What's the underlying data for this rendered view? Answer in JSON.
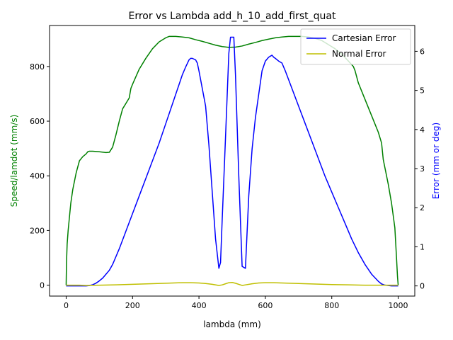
{
  "chart_data": {
    "type": "line",
    "title": "Error vs Lambda add_h_10_add_first_quat",
    "xlabel": "lambda (mm)",
    "ylabel_left": "Speed/lamdot (mm/s)",
    "ylabel_right": "Error (mm or deg)",
    "xlim": [
      -50,
      1050
    ],
    "ylim_left": [
      -40,
      950
    ],
    "ylim_right": [
      -0.26,
      6.66
    ],
    "x_ticks": [
      0,
      200,
      400,
      600,
      800,
      1000
    ],
    "y_ticks_left": [
      0,
      200,
      400,
      600,
      800
    ],
    "y_ticks_right": [
      0,
      1,
      2,
      3,
      4,
      5,
      6
    ],
    "grid": false,
    "legend_position": "upper right",
    "colors": {
      "speed": "#008000",
      "cartesian": "#0000ff",
      "normal": "#bfbf00"
    },
    "series": [
      {
        "name": "",
        "axis": "left",
        "color": "#008000",
        "x": [
          0,
          1,
          3,
          6,
          10,
          14,
          20,
          30,
          40,
          50,
          60,
          65,
          70,
          80,
          100,
          120,
          130,
          140,
          150,
          160,
          170,
          180,
          190,
          195,
          200,
          220,
          240,
          260,
          280,
          300,
          310,
          330,
          350,
          370,
          390,
          410,
          430,
          450,
          470,
          490,
          510,
          530,
          550,
          570,
          590,
          610,
          630,
          650,
          670,
          690,
          710,
          730,
          750,
          770,
          790,
          810,
          830,
          850,
          865,
          870,
          880,
          900,
          920,
          940,
          950,
          955,
          960,
          970,
          980,
          990,
          995,
          998,
          1000
        ],
        "values": [
          0,
          80,
          150,
          200,
          250,
          300,
          350,
          410,
          455,
          470,
          480,
          488,
          490,
          490,
          488,
          485,
          486,
          505,
          550,
          600,
          645,
          665,
          685,
          720,
          735,
          790,
          830,
          865,
          890,
          905,
          910,
          910,
          908,
          905,
          898,
          892,
          885,
          878,
          873,
          870,
          871,
          875,
          882,
          888,
          895,
          900,
          905,
          908,
          910,
          910,
          910,
          908,
          903,
          895,
          880,
          865,
          845,
          820,
          800,
          785,
          740,
          680,
          620,
          560,
          520,
          460,
          430,
          370,
          300,
          210,
          100,
          30,
          0
        ]
      },
      {
        "name": "Cartesian Error",
        "axis": "right",
        "color": "#0000ff",
        "x": [
          0,
          20,
          40,
          60,
          70,
          80,
          90,
          100,
          110,
          120,
          130,
          140,
          150,
          160,
          180,
          200,
          220,
          240,
          260,
          280,
          300,
          320,
          340,
          350,
          360,
          370,
          375,
          380,
          390,
          395,
          400,
          410,
          420,
          430,
          440,
          450,
          460,
          465,
          470,
          480,
          490,
          495,
          500,
          505,
          510,
          520,
          530,
          540,
          550,
          560,
          570,
          580,
          590,
          600,
          610,
          620,
          625,
          630,
          640,
          650,
          660,
          680,
          700,
          720,
          740,
          760,
          780,
          800,
          820,
          840,
          860,
          880,
          900,
          920,
          940,
          950,
          960,
          980,
          1000
        ],
        "values": [
          0,
          0,
          0,
          0,
          0.01,
          0.03,
          0.07,
          0.13,
          0.2,
          0.3,
          0.4,
          0.55,
          0.75,
          0.95,
          1.4,
          1.85,
          2.3,
          2.75,
          3.2,
          3.65,
          4.15,
          4.65,
          5.15,
          5.4,
          5.6,
          5.78,
          5.82,
          5.82,
          5.78,
          5.7,
          5.5,
          5.05,
          4.6,
          3.6,
          2.4,
          1.2,
          0.45,
          0.6,
          1.7,
          3.8,
          5.95,
          6.36,
          6.36,
          6.36,
          5.4,
          2.8,
          0.5,
          0.45,
          2.3,
          3.5,
          4.3,
          4.9,
          5.5,
          5.75,
          5.85,
          5.9,
          5.85,
          5.82,
          5.75,
          5.7,
          5.5,
          5.05,
          4.6,
          4.15,
          3.7,
          3.25,
          2.8,
          2.4,
          2.0,
          1.6,
          1.2,
          0.85,
          0.55,
          0.3,
          0.12,
          0.05,
          0.02,
          0,
          0
        ]
      },
      {
        "name": "Normal Error",
        "axis": "left",
        "color": "#bfbf00",
        "x": [
          0,
          40,
          60,
          100,
          150,
          200,
          250,
          300,
          350,
          375,
          400,
          420,
          440,
          460,
          470,
          480,
          490,
          500,
          510,
          520,
          530,
          540,
          560,
          580,
          600,
          625,
          650,
          700,
          750,
          800,
          850,
          900,
          950,
          1000
        ],
        "values": [
          0,
          0,
          -1,
          0,
          1,
          3,
          5,
          7,
          9,
          9,
          8,
          6,
          3,
          -1,
          1,
          5,
          9,
          10,
          7,
          3,
          -1,
          1,
          5,
          8,
          9,
          9,
          8,
          6,
          4,
          2,
          1,
          0,
          0,
          0
        ]
      }
    ]
  }
}
